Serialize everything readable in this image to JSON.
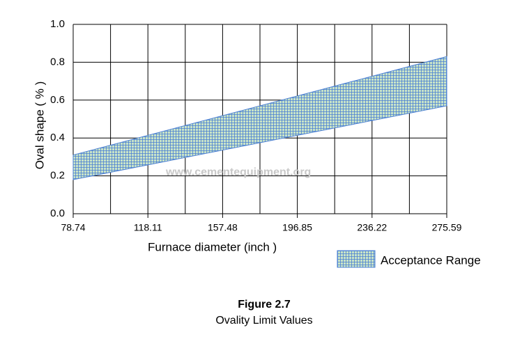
{
  "chart_data": {
    "type": "range-area",
    "title": "Figure 2.7",
    "subtitle": "Ovality Limit Values",
    "xlabel": "Furnace diameter (inch )",
    "ylabel": "Oval shape ( % )",
    "annotation": "www.cementequipment.org",
    "xlim": [
      78.74,
      275.59
    ],
    "xticks": [
      78.74,
      118.11,
      157.48,
      196.85,
      236.22,
      275.59
    ],
    "ylim": [
      0,
      1
    ],
    "yticks": [
      {
        "value": 0,
        "label": "0.0"
      },
      0.2,
      0.4,
      0.6,
      0.8,
      {
        "value": 1,
        "label": "1.0"
      }
    ],
    "grid": true,
    "legend": "lower-right",
    "series": [
      {
        "name": "Acceptance Range",
        "color": "#4a7fd4",
        "x": [
          78.74,
          275.59
        ],
        "low": [
          0.18,
          0.57
        ],
        "high": [
          0.31,
          0.83
        ]
      }
    ]
  }
}
